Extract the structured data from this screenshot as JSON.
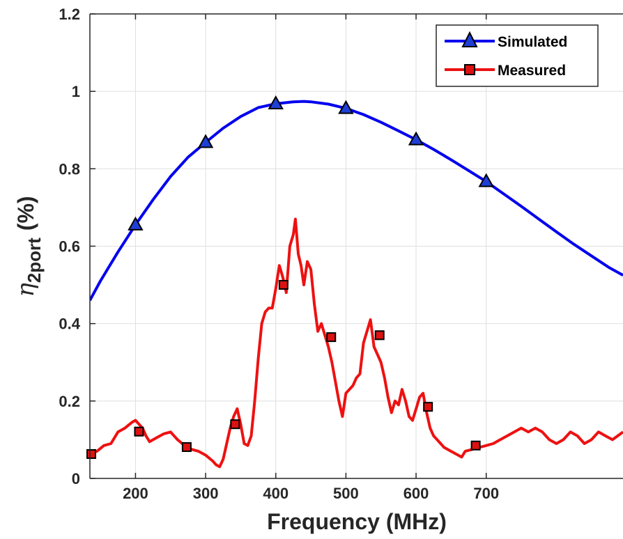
{
  "chart_data": {
    "type": "line",
    "xlabel": "Frequency (MHz)",
    "ylabel_symbol": "η",
    "ylabel_subscript": "2port",
    "ylabel_unit": "(%)",
    "xlim": [
      135,
      895
    ],
    "ylim": [
      0,
      1.2
    ],
    "xticks": [
      200,
      300,
      400,
      500,
      600,
      700
    ],
    "xtick_labels": [
      "200",
      "300",
      "400",
      "500",
      "600",
      "700"
    ],
    "yticks": [
      0,
      0.2,
      0.4,
      0.6,
      0.8,
      1,
      1.2
    ],
    "ytick_labels": [
      "0",
      "0.2",
      "0.4",
      "0.6",
      "0.8",
      "1",
      "1.2"
    ],
    "grid": true,
    "legend_position": "top-right",
    "series": [
      {
        "name": "Simulated",
        "color": "#0000ee",
        "marker": "triangle",
        "marker_color": "#1f3fd6",
        "x": [
          135,
          150,
          175,
          200,
          225,
          250,
          275,
          300,
          325,
          350,
          375,
          400,
          425,
          440,
          450,
          475,
          500,
          525,
          550,
          575,
          600,
          625,
          650,
          675,
          700,
          725,
          750,
          775,
          800,
          825,
          850,
          875,
          895
        ],
        "y": [
          0.46,
          0.51,
          0.585,
          0.655,
          0.72,
          0.78,
          0.83,
          0.868,
          0.905,
          0.935,
          0.958,
          0.968,
          0.973,
          0.974,
          0.973,
          0.967,
          0.956,
          0.94,
          0.92,
          0.898,
          0.875,
          0.85,
          0.823,
          0.795,
          0.767,
          0.735,
          0.703,
          0.67,
          0.637,
          0.605,
          0.575,
          0.545,
          0.525
        ],
        "marker_x": [
          200,
          300,
          400,
          500,
          600,
          700
        ],
        "marker_y": [
          0.655,
          0.868,
          0.968,
          0.956,
          0.875,
          0.767
        ]
      },
      {
        "name": "Measured",
        "color": "#ee1111",
        "marker": "square",
        "marker_color": "#dd1111",
        "x": [
          135,
          145,
          155,
          165,
          175,
          185,
          195,
          200,
          205,
          210,
          215,
          220,
          230,
          240,
          250,
          255,
          260,
          270,
          280,
          290,
          300,
          310,
          315,
          320,
          325,
          330,
          335,
          340,
          345,
          350,
          355,
          360,
          365,
          370,
          375,
          380,
          385,
          390,
          395,
          400,
          405,
          410,
          415,
          420,
          425,
          428,
          432,
          436,
          440,
          445,
          450,
          455,
          460,
          465,
          470,
          475,
          480,
          485,
          490,
          495,
          500,
          505,
          510,
          515,
          520,
          525,
          530,
          535,
          540,
          545,
          550,
          555,
          560,
          565,
          570,
          575,
          580,
          585,
          590,
          595,
          600,
          605,
          610,
          615,
          620,
          625,
          630,
          640,
          650,
          660,
          665,
          670,
          680,
          690,
          700,
          710,
          720,
          730,
          740,
          750,
          760,
          770,
          780,
          790,
          800,
          810,
          820,
          830,
          840,
          850,
          860,
          870,
          880,
          895
        ],
        "y": [
          0.065,
          0.07,
          0.085,
          0.09,
          0.12,
          0.13,
          0.145,
          0.15,
          0.14,
          0.13,
          0.11,
          0.095,
          0.105,
          0.115,
          0.12,
          0.11,
          0.1,
          0.085,
          0.075,
          0.07,
          0.06,
          0.045,
          0.035,
          0.03,
          0.05,
          0.09,
          0.13,
          0.16,
          0.18,
          0.14,
          0.09,
          0.085,
          0.11,
          0.2,
          0.31,
          0.4,
          0.43,
          0.44,
          0.44,
          0.49,
          0.55,
          0.52,
          0.48,
          0.6,
          0.63,
          0.67,
          0.58,
          0.55,
          0.5,
          0.56,
          0.54,
          0.45,
          0.38,
          0.4,
          0.37,
          0.34,
          0.3,
          0.25,
          0.2,
          0.16,
          0.22,
          0.23,
          0.24,
          0.26,
          0.27,
          0.35,
          0.38,
          0.41,
          0.34,
          0.32,
          0.3,
          0.26,
          0.21,
          0.17,
          0.2,
          0.19,
          0.23,
          0.2,
          0.16,
          0.15,
          0.18,
          0.21,
          0.22,
          0.17,
          0.13,
          0.11,
          0.1,
          0.08,
          0.07,
          0.06,
          0.055,
          0.07,
          0.075,
          0.08,
          0.085,
          0.09,
          0.1,
          0.11,
          0.12,
          0.13,
          0.12,
          0.13,
          0.12,
          0.1,
          0.09,
          0.1,
          0.12,
          0.11,
          0.09,
          0.1,
          0.12,
          0.11,
          0.1,
          0.12
        ],
        "marker_x": [
          137,
          205,
          273,
          342,
          411,
          479,
          548,
          617,
          685
        ],
        "marker_y": [
          0.063,
          0.121,
          0.081,
          0.14,
          0.5,
          0.365,
          0.37,
          0.185,
          0.085
        ]
      }
    ]
  }
}
